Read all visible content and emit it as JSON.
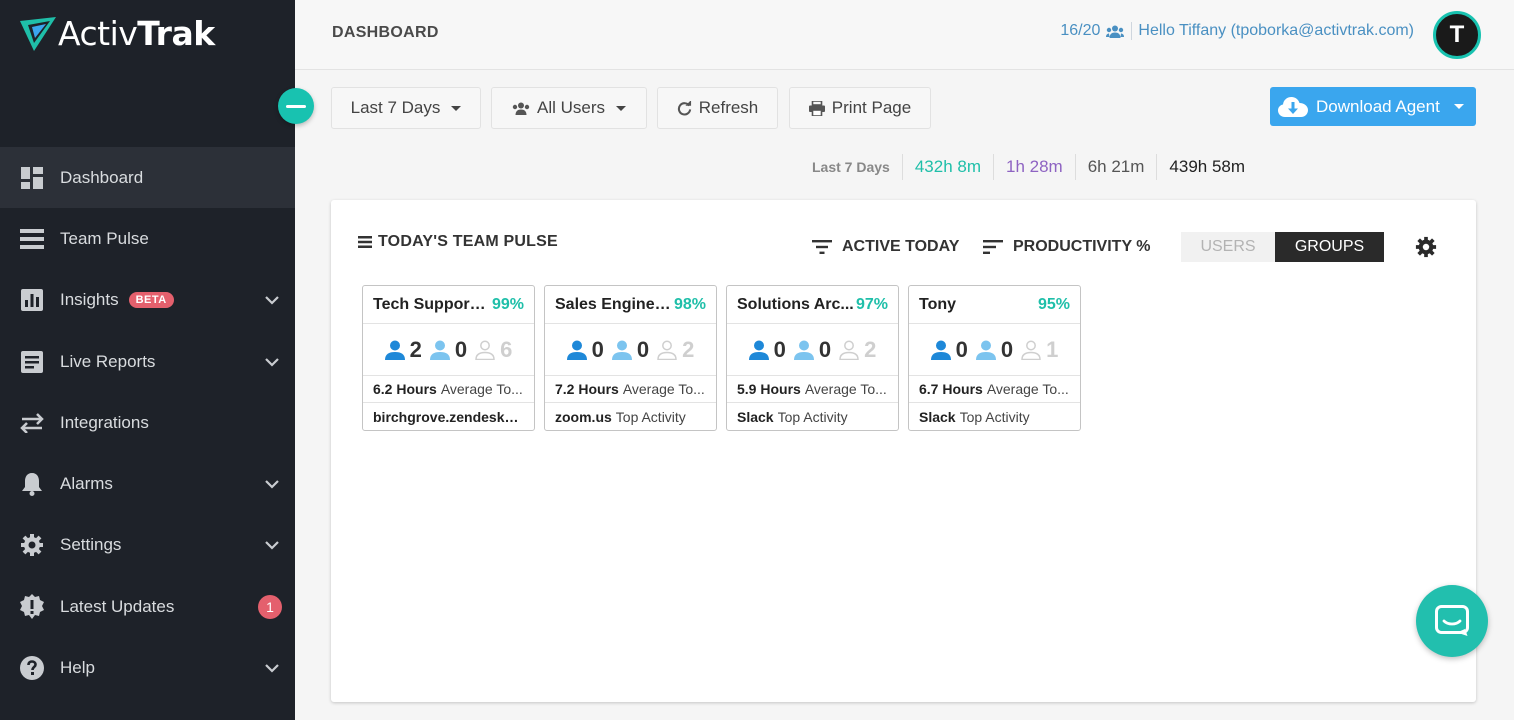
{
  "app": {
    "logo_text_light": "Activ",
    "logo_text_bold": "Trak"
  },
  "sidebar": {
    "items": [
      {
        "label": "Dashboard",
        "icon": "dashboard-icon"
      },
      {
        "label": "Team Pulse",
        "icon": "team-pulse-icon"
      },
      {
        "label": "Insights",
        "icon": "insights-icon",
        "tag": "BETA"
      },
      {
        "label": "Live Reports",
        "icon": "live-reports-icon"
      },
      {
        "label": "Integrations",
        "icon": "integrations-icon"
      },
      {
        "label": "Alarms",
        "icon": "bell-icon"
      },
      {
        "label": "Settings",
        "icon": "gear-icon"
      },
      {
        "label": "Latest Updates",
        "icon": "updates-icon",
        "badge": "1"
      },
      {
        "label": "Help",
        "icon": "help-icon"
      }
    ]
  },
  "header": {
    "title": "DASHBOARD",
    "license_count": "16/20",
    "greeting": "Hello Tiffany (tpoborka@activtrak.com)",
    "avatar_letter": "T"
  },
  "toolbar": {
    "date_range": "Last 7 Days",
    "users": "All Users",
    "refresh": "Refresh",
    "print": "Print Page",
    "download": "Download Agent"
  },
  "stats": {
    "label": "Last 7 Days",
    "productive": "432h 8m",
    "unproductive": "1h 28m",
    "undefined": "6h 21m",
    "total": "439h 58m",
    "colors": {
      "productive": "#1fbfa9",
      "unproductive": "#8e63c2",
      "undefined": "#555555",
      "total": "#222222"
    }
  },
  "panel": {
    "title": "TODAY'S TEAM PULSE",
    "sort_active": "ACTIVE TODAY",
    "sort_productivity": "PRODUCTIVITY %",
    "toggle_users": "USERS",
    "toggle_groups": "GROUPS",
    "cards": [
      {
        "name": "Tech Support ...",
        "pct": "99%",
        "active": "2",
        "passive": "0",
        "inactive": "6",
        "hours": "6.2 Hours",
        "hours_text": "Average To...",
        "activity": "birchgrove.zendesk....",
        "activity_text": ""
      },
      {
        "name": "Sales Enginee...",
        "pct": "98%",
        "active": "0",
        "passive": "0",
        "inactive": "2",
        "hours": "7.2 Hours",
        "hours_text": "Average To...",
        "activity": "zoom.us",
        "activity_text": "Top Activity"
      },
      {
        "name": "Solutions Arc...",
        "pct": "97%",
        "active": "0",
        "passive": "0",
        "inactive": "2",
        "hours": "5.9 Hours",
        "hours_text": "Average To...",
        "activity": "Slack",
        "activity_text": "Top Activity"
      },
      {
        "name": "Tony",
        "pct": "95%",
        "active": "0",
        "passive": "0",
        "inactive": "1",
        "hours": "6.7 Hours",
        "hours_text": "Average To...",
        "activity": "Slack",
        "activity_text": "Top Activity"
      }
    ]
  }
}
